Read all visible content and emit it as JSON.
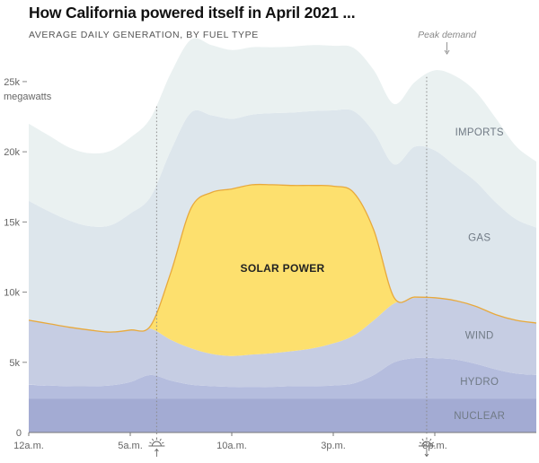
{
  "title": "How California powered itself in April 2021 ...",
  "subtitle": "AVERAGE DAILY GENERATION, BY FUEL TYPE",
  "chart_data": {
    "type": "area",
    "stacked": true,
    "unit_label": "megawatts",
    "x_ticks": [
      {
        "hour": 0,
        "label": "12a.m."
      },
      {
        "hour": 5,
        "label": "5a.m."
      },
      {
        "hour": 10,
        "label": "10a.m."
      },
      {
        "hour": 15,
        "label": "3p.m."
      },
      {
        "hour": 20,
        "label": "8p.m."
      }
    ],
    "y_ticks": [
      {
        "value": 0,
        "label": "0"
      },
      {
        "value": 5000,
        "label": "5k"
      },
      {
        "value": 10000,
        "label": "10k"
      },
      {
        "value": 15000,
        "label": "15k"
      },
      {
        "value": 20000,
        "label": "20k"
      },
      {
        "value": 25000,
        "label": "25k"
      }
    ],
    "xlim": [
      0,
      25
    ],
    "ylim": [
      0,
      28000
    ],
    "x": [
      0,
      1,
      2,
      3,
      4,
      5,
      6,
      7,
      8,
      9,
      10,
      11,
      12,
      13,
      14,
      15,
      16,
      17,
      18,
      19,
      20,
      21,
      22,
      23,
      24,
      25
    ],
    "series": [
      {
        "name": "NUCLEAR",
        "color": "#a3abd3",
        "values": [
          2400,
          2400,
          2400,
          2400,
          2400,
          2400,
          2400,
          2400,
          2400,
          2400,
          2400,
          2400,
          2400,
          2400,
          2400,
          2400,
          2400,
          2400,
          2400,
          2400,
          2400,
          2400,
          2400,
          2400,
          2400,
          2400
        ]
      },
      {
        "name": "HYDRO",
        "color": "#b5bdde",
        "values": [
          1000,
          950,
          900,
          900,
          950,
          1200,
          1700,
          1300,
          1000,
          900,
          850,
          850,
          850,
          900,
          900,
          950,
          1100,
          1700,
          2600,
          2900,
          2900,
          2800,
          2500,
          2100,
          1800,
          1700
        ]
      },
      {
        "name": "WIND",
        "color": "#c6cde3",
        "values": [
          4600,
          4400,
          4200,
          4000,
          3800,
          3700,
          3300,
          2900,
          2600,
          2300,
          2200,
          2300,
          2400,
          2500,
          2700,
          3000,
          3400,
          3900,
          4200,
          4300,
          4300,
          4200,
          4100,
          3900,
          3800,
          3700
        ]
      },
      {
        "name": "SOLAR POWER",
        "color": "#fde06e",
        "values": [
          0,
          0,
          0,
          0,
          0,
          0,
          200,
          4800,
          10000,
          11500,
          11900,
          12100,
          12000,
          11800,
          11600,
          11200,
          10200,
          6400,
          400,
          50,
          0,
          0,
          0,
          0,
          0,
          0
        ]
      },
      {
        "name": "GAS",
        "color": "#dde6ec",
        "values": [
          8500,
          8000,
          7600,
          7400,
          7600,
          8300,
          9200,
          8700,
          6800,
          5500,
          5000,
          5000,
          5100,
          5200,
          5300,
          5400,
          5800,
          7000,
          9500,
          10700,
          10500,
          9600,
          8900,
          8000,
          7200,
          6800
        ]
      },
      {
        "name": "IMPORTS",
        "color": "#eaf1f1",
        "values": [
          5500,
          5400,
          5200,
          5200,
          5300,
          5400,
          5600,
          5500,
          5200,
          5000,
          4900,
          4800,
          4700,
          4700,
          4700,
          4600,
          4500,
          4400,
          4300,
          4600,
          5700,
          6400,
          6400,
          6000,
          5200,
          4700
        ]
      }
    ],
    "annotations": {
      "peak_demand": {
        "label": "Peak demand",
        "hour": 20.6
      },
      "sunrise_hour": 6.3,
      "sunset_hour": 19.6
    },
    "grid": false
  }
}
